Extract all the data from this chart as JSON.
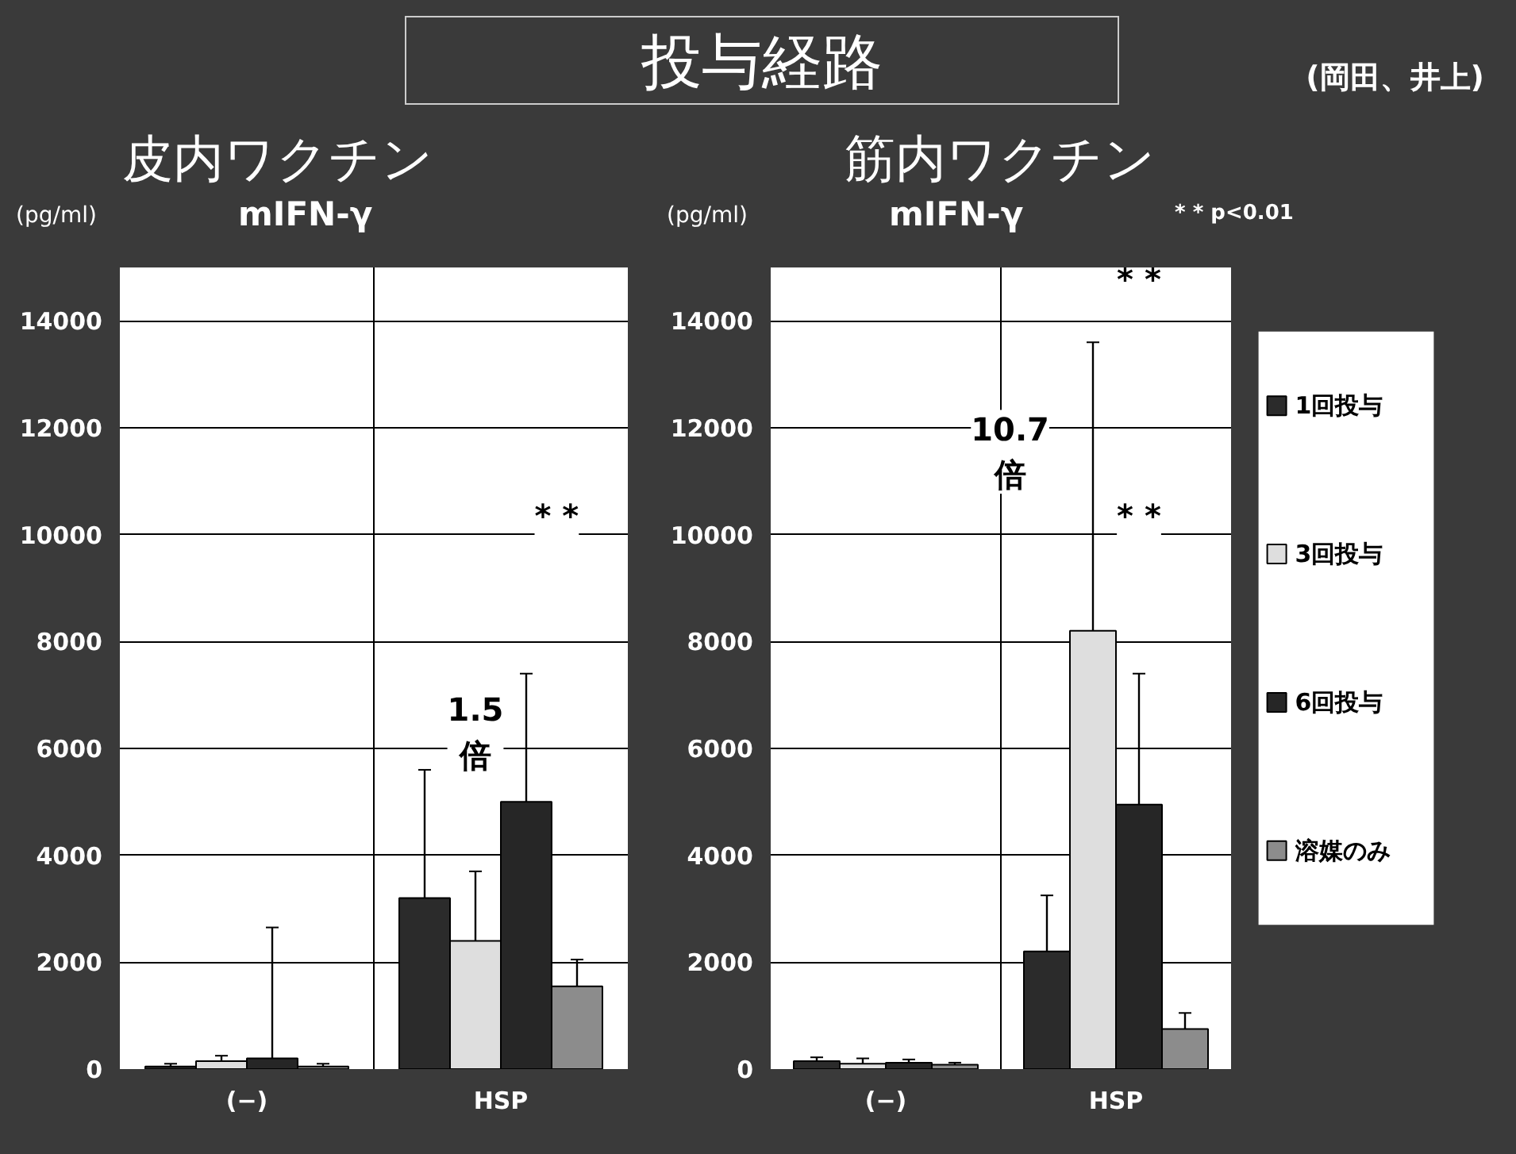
{
  "chart_data": [
    {
      "type": "bar",
      "title": "皮内ワクチン",
      "subtitle": "mIFN-γ",
      "ylabel": "(pg/ml)",
      "categories": [
        "(−)",
        "HSP"
      ],
      "series": [
        {
          "color": "#2b2b2b",
          "values": [
            50,
            3200
          ],
          "errors": [
            [
              50,
              100
            ],
            [
              3200,
              5600
            ]
          ]
        },
        {
          "color": "#dedede",
          "values": [
            150,
            2400
          ],
          "errors": [
            [
              150,
              250
            ],
            [
              2400,
              3700
            ]
          ]
        },
        {
          "color": "#262626",
          "values": [
            200,
            5000
          ],
          "errors": [
            [
              200,
              2650
            ],
            [
              5000,
              7400
            ]
          ]
        },
        {
          "color": "#8c8c8c",
          "values": [
            50,
            1550
          ],
          "errors": [
            [
              50,
              100
            ],
            [
              1550,
              2050
            ]
          ]
        }
      ],
      "ylim": [
        0,
        15000
      ],
      "yticks": [
        0,
        2000,
        4000,
        6000,
        8000,
        10000,
        12000,
        14000
      ],
      "grid": "y",
      "legend": false,
      "annotations": [
        "投与経路",
        "(岡田、井上)",
        "1.5\n倍",
        "* *"
      ]
    },
    {
      "type": "bar",
      "title": "筋内ワクチン",
      "subtitle": "mIFN-γ",
      "ylabel": "(pg/ml)",
      "categories": [
        "(−)",
        "HSP"
      ],
      "series": [
        {
          "name": "1回投与",
          "color": "#2b2b2b",
          "values": [
            150,
            2200
          ],
          "errors": [
            [
              150,
              220
            ],
            [
              2200,
              3250
            ]
          ]
        },
        {
          "name": "3回投与",
          "color": "#dedede",
          "values": [
            100,
            8200
          ],
          "errors": [
            [
              100,
              200
            ],
            [
              8200,
              13600
            ]
          ]
        },
        {
          "name": "6回投与",
          "color": "#262626",
          "values": [
            120,
            4950
          ],
          "errors": [
            [
              120,
              180
            ],
            [
              4950,
              7400
            ]
          ]
        },
        {
          "name": "溶媒のみ",
          "color": "#8c8c8c",
          "values": [
            80,
            750
          ],
          "errors": [
            [
              80,
              120
            ],
            [
              750,
              1050
            ]
          ]
        }
      ],
      "ylim": [
        0,
        15000
      ],
      "yticks": [
        0,
        2000,
        4000,
        6000,
        8000,
        10000,
        12000,
        14000
      ],
      "grid": "y",
      "legend": "right",
      "annotations": [
        "* * p<0.01",
        "10.7\n倍",
        "* *",
        "* *"
      ]
    }
  ]
}
